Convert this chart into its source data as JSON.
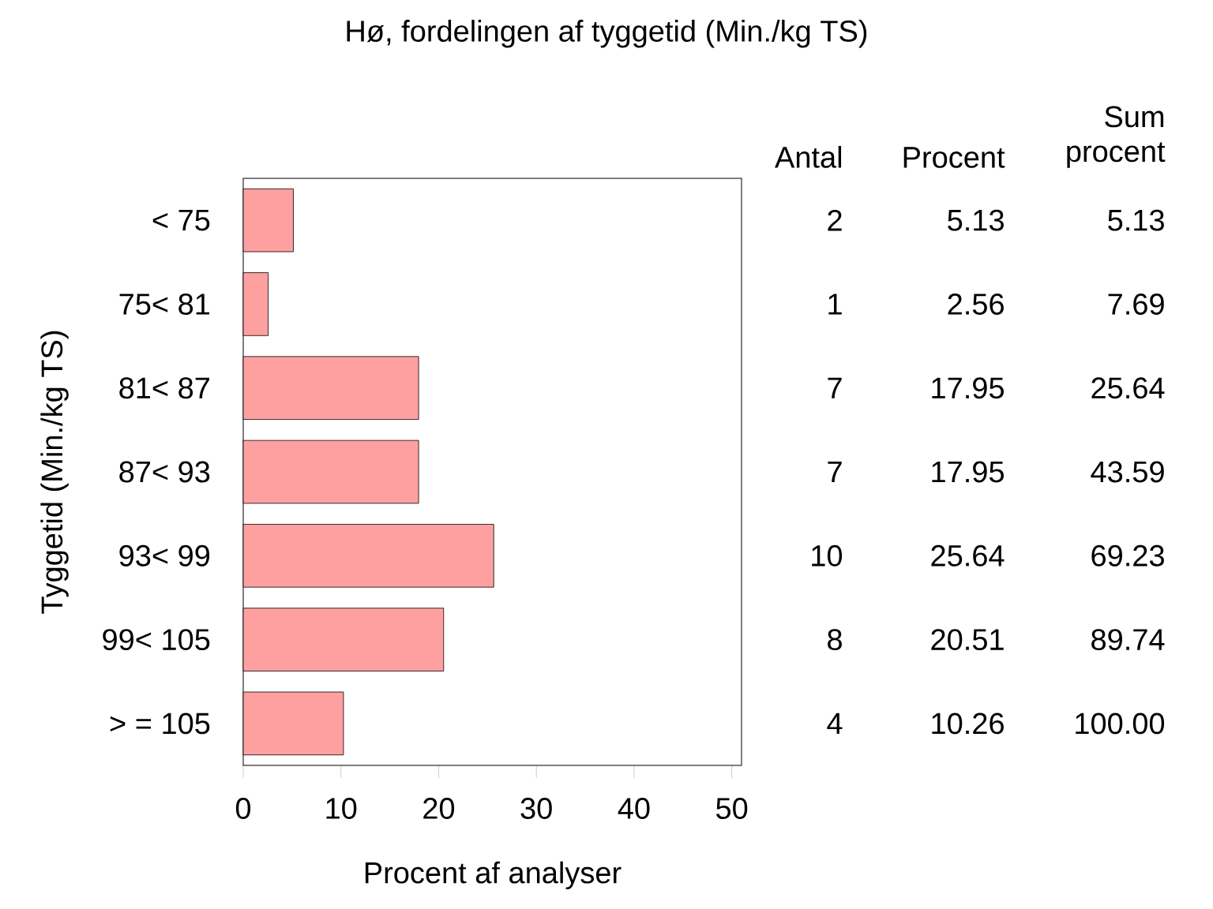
{
  "chart_data": {
    "type": "bar",
    "orientation": "horizontal",
    "title": "Hø, fordelingen af tyggetid (Min./kg TS)",
    "xlabel": "Procent af analyser",
    "ylabel": "Tyggetid (Min./kg TS)",
    "categories": [
      "< 75",
      "75< 81",
      "81< 87",
      "87< 93",
      "93< 99",
      "99< 105",
      "> = 105"
    ],
    "values": [
      5.13,
      2.56,
      17.95,
      17.95,
      25.64,
      20.51,
      10.26
    ],
    "value_labels": [
      "5.13",
      "2.56",
      "17.95",
      "17.95",
      "25.64",
      "20.51",
      "10.26"
    ],
    "color": "#ffa0a0",
    "xlim": [
      0,
      51
    ],
    "xticks": [
      0,
      10,
      20,
      30,
      40,
      50
    ],
    "annotations": [
      "Antal",
      "Procent",
      "Sum procent",
      "2",
      "5.13",
      "1",
      "7.69",
      "7",
      "25.64",
      "7",
      "43.59",
      "10",
      "69.23",
      "8",
      "89.74",
      "4",
      "100.00"
    ]
  }
}
